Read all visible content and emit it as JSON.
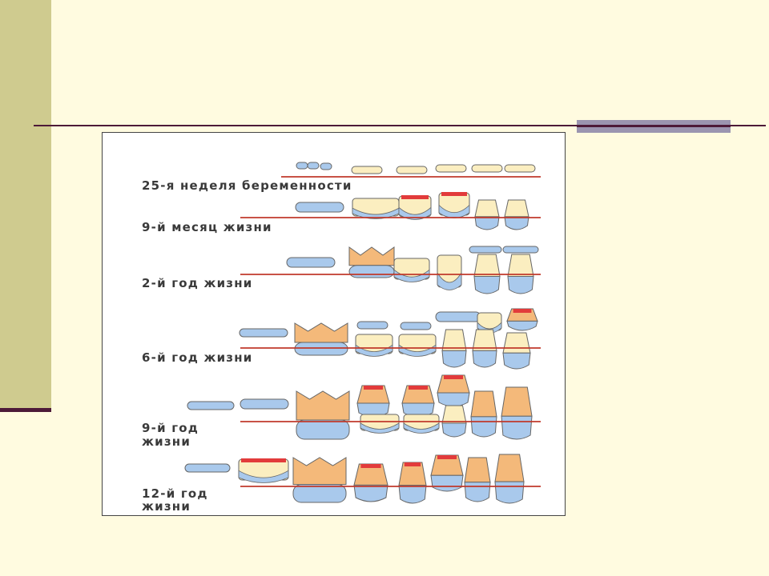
{
  "slide": {
    "colors": {
      "background": "#fffbe0",
      "side_bar": "#cfcb8f",
      "rule": "#4d1a38",
      "accent": "#9b95b0"
    }
  },
  "figure": {
    "colors": {
      "baseline": "#c0392b",
      "enamel": "#a9c9ec",
      "crown_dentin": "#fbeec0",
      "root": "#f4b97a",
      "pulp": "#e23b3b",
      "outline": "#666666"
    },
    "stages": [
      {
        "label": "25-я неделя беременности"
      },
      {
        "label": "9-й месяц жизни"
      },
      {
        "label": "2-й год жизни"
      },
      {
        "label": "6-й год жизни"
      },
      {
        "label_line1": "9-й год",
        "label_line2": "жизни"
      },
      {
        "label_line1": "12-й год",
        "label_line2": "жизни"
      }
    ]
  }
}
